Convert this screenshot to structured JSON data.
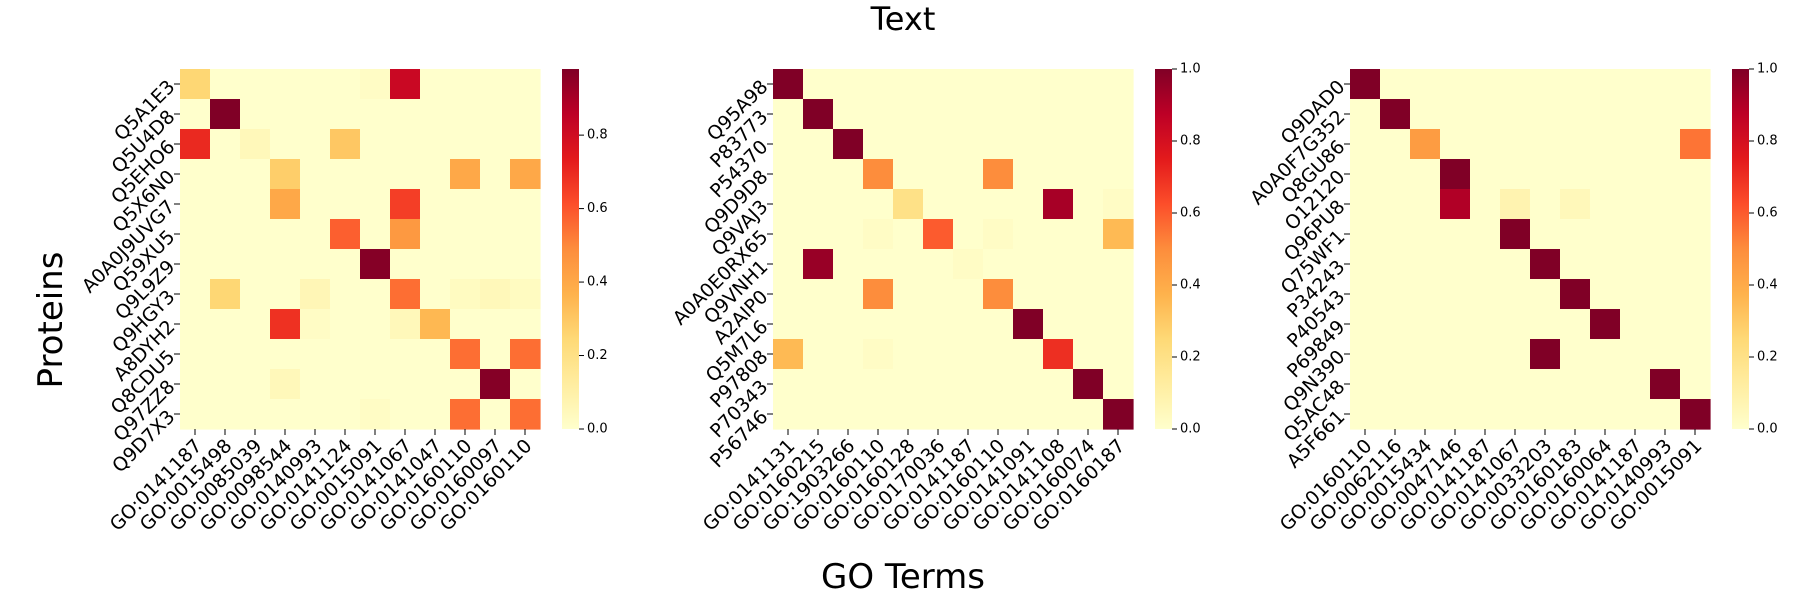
{
  "figure": {
    "title": "Text",
    "xlabel": "GO Terms",
    "ylabel": "Proteins"
  },
  "colormap": {
    "name": "YlOrRd",
    "stops": [
      "#ffffcc",
      "#ffeda0",
      "#fed976",
      "#feb24c",
      "#fd8d3c",
      "#fc4e2a",
      "#e31a1c",
      "#bd0026",
      "#800026"
    ]
  },
  "chart_data": [
    {
      "type": "heatmap",
      "y_categories": [
        "Q5A1E3",
        "Q5U4D8",
        "Q5EHO6",
        "Q5X6N0",
        "A0A0J9UVG7",
        "Q59XU5",
        "Q9L9Z9",
        "Q9HGY3",
        "A8DYH2",
        "Q8CDU5",
        "Q97ZZ8",
        "Q9D7X3"
      ],
      "x_categories": [
        "GO:0141187",
        "GO:0015498",
        "GO:0085039",
        "GO:0098544",
        "GO:0140993",
        "GO:0141124",
        "GO:0015091",
        "GO:0141067",
        "GO:0141047",
        "GO:0160110",
        "GO:0160097",
        "GO:0160110"
      ],
      "values": [
        [
          0.25,
          0.0,
          0.0,
          0.0,
          0.0,
          0.0,
          0.02,
          0.82,
          0.0,
          0.0,
          0.0,
          0.0
        ],
        [
          0.0,
          0.98,
          0.0,
          0.0,
          0.0,
          0.0,
          0.0,
          0.0,
          0.0,
          0.0,
          0.0,
          0.0
        ],
        [
          0.7,
          0.0,
          0.05,
          0.0,
          0.0,
          0.3,
          0.0,
          0.0,
          0.0,
          0.0,
          0.0,
          0.0
        ],
        [
          0.0,
          0.0,
          0.0,
          0.28,
          0.0,
          0.0,
          0.0,
          0.0,
          0.0,
          0.4,
          0.0,
          0.4
        ],
        [
          0.0,
          0.0,
          0.0,
          0.4,
          0.0,
          0.0,
          0.0,
          0.65,
          0.0,
          0.0,
          0.0,
          0.0
        ],
        [
          0.0,
          0.0,
          0.0,
          0.0,
          0.0,
          0.58,
          0.0,
          0.45,
          0.0,
          0.0,
          0.0,
          0.0
        ],
        [
          0.0,
          0.0,
          0.0,
          0.0,
          0.0,
          0.0,
          0.97,
          0.0,
          0.0,
          0.0,
          0.0,
          0.0
        ],
        [
          0.0,
          0.25,
          0.0,
          0.0,
          0.06,
          0.0,
          0.0,
          0.55,
          0.0,
          0.03,
          0.05,
          0.03
        ],
        [
          0.0,
          0.0,
          0.0,
          0.68,
          0.02,
          0.0,
          0.0,
          0.05,
          0.35,
          0.0,
          0.0,
          0.0
        ],
        [
          0.0,
          0.0,
          0.0,
          0.0,
          0.0,
          0.0,
          0.0,
          0.0,
          0.0,
          0.55,
          0.0,
          0.55
        ],
        [
          0.0,
          0.0,
          0.0,
          0.05,
          0.0,
          0.0,
          0.0,
          0.0,
          0.0,
          0.0,
          0.97,
          0.0
        ],
        [
          0.0,
          0.0,
          0.0,
          0.0,
          0.0,
          0.0,
          0.02,
          0.0,
          0.0,
          0.55,
          0.0,
          0.55
        ]
      ],
      "colorbar": {
        "min": 0,
        "max": 0.98,
        "ticks": [
          0.0,
          0.2,
          0.4,
          0.6,
          0.8
        ],
        "tick_labels": [
          "0.0",
          "0.2",
          "0.4",
          "0.6",
          "0.8"
        ]
      }
    },
    {
      "type": "heatmap",
      "y_categories": [
        "Q95A98",
        "P83773",
        "P54370",
        "Q9D9D8",
        "Q9VAJ3",
        "A0A0E0RX65",
        "Q9VNH1",
        "A2AIP0",
        "Q5M7L6",
        "P97808",
        "P70343",
        "P56746"
      ],
      "x_categories": [
        "GO:0141131",
        "GO:0160215",
        "GO:1903266",
        "GO:0160110",
        "GO:0160128",
        "GO:0170036",
        "GO:0141187",
        "GO:0160110",
        "GO:0141091",
        "GO:0141108",
        "GO:0160074",
        "GO:0160187"
      ],
      "values": [
        [
          1.0,
          0.0,
          0.0,
          0.0,
          0.0,
          0.0,
          0.0,
          0.0,
          0.0,
          0.0,
          0.0,
          0.0
        ],
        [
          0.0,
          1.0,
          0.0,
          0.0,
          0.0,
          0.0,
          0.0,
          0.0,
          0.0,
          0.0,
          0.0,
          0.0
        ],
        [
          0.0,
          0.0,
          1.0,
          0.0,
          0.0,
          0.0,
          0.0,
          0.0,
          0.0,
          0.0,
          0.0,
          0.0
        ],
        [
          0.0,
          0.0,
          0.0,
          0.5,
          0.0,
          0.0,
          0.0,
          0.5,
          0.0,
          0.0,
          0.0,
          0.0
        ],
        [
          0.0,
          0.0,
          0.0,
          0.0,
          0.2,
          0.0,
          0.0,
          0.0,
          0.0,
          0.92,
          0.0,
          0.02
        ],
        [
          0.0,
          0.0,
          0.0,
          0.02,
          0.0,
          0.6,
          0.0,
          0.02,
          0.0,
          0.0,
          0.0,
          0.35
        ],
        [
          0.0,
          0.95,
          0.0,
          0.0,
          0.0,
          0.0,
          0.02,
          0.0,
          0.0,
          0.0,
          0.0,
          0.0
        ],
        [
          0.0,
          0.0,
          0.0,
          0.5,
          0.0,
          0.0,
          0.0,
          0.5,
          0.0,
          0.0,
          0.0,
          0.0
        ],
        [
          0.0,
          0.0,
          0.0,
          0.0,
          0.0,
          0.0,
          0.0,
          0.0,
          1.0,
          0.0,
          0.0,
          0.0
        ],
        [
          0.35,
          0.0,
          0.0,
          0.02,
          0.0,
          0.0,
          0.0,
          0.0,
          0.0,
          0.7,
          0.0,
          0.0
        ],
        [
          0.0,
          0.0,
          0.0,
          0.0,
          0.0,
          0.0,
          0.0,
          0.0,
          0.0,
          0.0,
          1.0,
          0.0
        ],
        [
          0.0,
          0.0,
          0.0,
          0.0,
          0.0,
          0.0,
          0.0,
          0.0,
          0.0,
          0.0,
          0.0,
          1.0
        ]
      ],
      "colorbar": {
        "min": 0,
        "max": 1.0,
        "ticks": [
          0.0,
          0.2,
          0.4,
          0.6,
          0.8,
          1.0
        ],
        "tick_labels": [
          "0.0",
          "0.2",
          "0.4",
          "0.6",
          "0.8",
          "1.0"
        ]
      }
    },
    {
      "type": "heatmap",
      "y_categories": [
        "Q9DAD0",
        "A0A0F7G352",
        "Q8GU86",
        "O12120",
        "Q96PU8",
        "Q75WF1",
        "P34243",
        "P40543",
        "P69849",
        "Q9N390",
        "Q5AC48",
        "A5F661"
      ],
      "x_categories": [
        "GO:0160110",
        "GO:0062116",
        "GO:0015434",
        "GO:0047146",
        "GO:0141187",
        "GO:0141067",
        "GO:0033203",
        "GO:0160183",
        "GO:0160064",
        "GO:0141187",
        "GO:0140993",
        "GO:0015091"
      ],
      "values": [
        [
          1.0,
          0.0,
          0.0,
          0.0,
          0.0,
          0.0,
          0.0,
          0.0,
          0.0,
          0.0,
          0.0,
          0.0
        ],
        [
          0.0,
          1.0,
          0.0,
          0.0,
          0.0,
          0.0,
          0.0,
          0.0,
          0.0,
          0.0,
          0.0,
          0.0
        ],
        [
          0.0,
          0.0,
          0.45,
          0.0,
          0.0,
          0.0,
          0.0,
          0.0,
          0.0,
          0.0,
          0.0,
          0.55
        ],
        [
          0.0,
          0.0,
          0.0,
          1.0,
          0.0,
          0.0,
          0.0,
          0.0,
          0.0,
          0.0,
          0.0,
          0.0
        ],
        [
          0.0,
          0.0,
          0.0,
          0.9,
          0.0,
          0.08,
          0.0,
          0.05,
          0.0,
          0.0,
          0.0,
          0.0
        ],
        [
          0.0,
          0.0,
          0.0,
          0.0,
          0.0,
          1.0,
          0.0,
          0.0,
          0.0,
          0.0,
          0.0,
          0.0
        ],
        [
          0.0,
          0.0,
          0.0,
          0.0,
          0.0,
          0.0,
          1.0,
          0.0,
          0.0,
          0.0,
          0.0,
          0.0
        ],
        [
          0.0,
          0.0,
          0.0,
          0.0,
          0.0,
          0.0,
          0.0,
          1.0,
          0.0,
          0.0,
          0.0,
          0.0
        ],
        [
          0.0,
          0.0,
          0.0,
          0.0,
          0.0,
          0.0,
          0.0,
          0.0,
          1.0,
          0.0,
          0.0,
          0.0
        ],
        [
          0.0,
          0.0,
          0.0,
          0.0,
          0.0,
          0.0,
          1.0,
          0.0,
          0.0,
          0.0,
          0.0,
          0.0
        ],
        [
          0.0,
          0.0,
          0.0,
          0.0,
          0.0,
          0.0,
          0.0,
          0.0,
          0.0,
          0.0,
          1.0,
          0.0
        ],
        [
          0.0,
          0.0,
          0.0,
          0.0,
          0.0,
          0.0,
          0.0,
          0.0,
          0.0,
          0.0,
          0.0,
          1.0
        ]
      ],
      "colorbar": {
        "min": 0,
        "max": 1.0,
        "ticks": [
          0.0,
          0.2,
          0.4,
          0.6,
          0.8,
          1.0
        ],
        "tick_labels": [
          "0.0",
          "0.2",
          "0.4",
          "0.6",
          "0.8",
          "1.0"
        ]
      }
    }
  ]
}
